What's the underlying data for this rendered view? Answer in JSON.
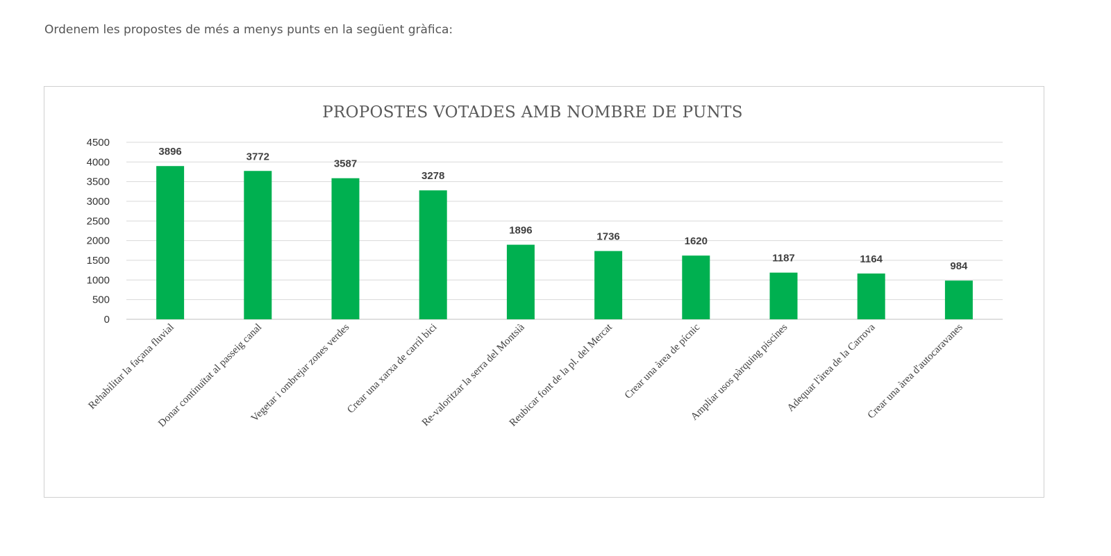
{
  "intro_text": "Ordenem les propostes de més a menys punts en la següent gràfica:",
  "colors": {
    "bar": "#00b050",
    "grid": "#d9d9d9",
    "frame": "#d0d0d0"
  },
  "chart_data": {
    "type": "bar",
    "title": "PROPOSTES VOTADES AMB NOMBRE DE PUNTS",
    "xlabel": "",
    "ylabel": "",
    "ylim": [
      0,
      4500
    ],
    "ytick_step": 500,
    "grid": true,
    "legend": "none",
    "categories": [
      "Rehabilitar la façana fluvial",
      "Donar continuïtat al passeig canal",
      "Vegetar i ombrejar zones verdes",
      "Crear una xarxa de carril bici",
      "Re-valoritzar la serra del Montsià",
      "Reubicar font de la pl. del Mercat",
      "Crear una àrea de pícnic",
      "Ampliar usos pàrquing piscines",
      "Adequar l'àrea de la Carrova",
      "Crear una àrea d'autocaravanes"
    ],
    "values": [
      3896,
      3772,
      3587,
      3278,
      1896,
      1736,
      1620,
      1187,
      1164,
      984
    ]
  }
}
